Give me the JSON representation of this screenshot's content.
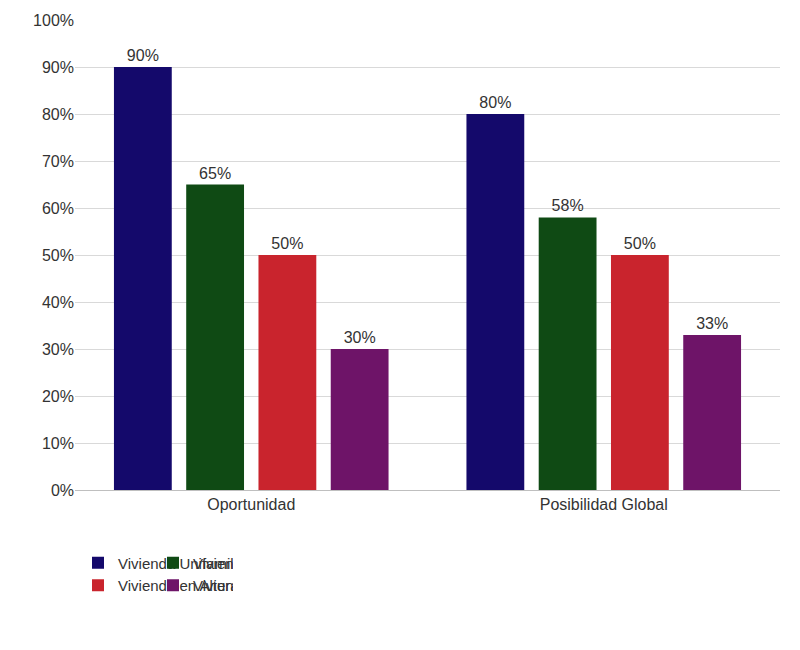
{
  "chart_data": {
    "type": "bar",
    "categories": [
      "Oportunidad",
      "Posibilidad Global"
    ],
    "series": [
      {
        "name": "Vivienda Unifamiliar - SIN CRA",
        "color": "#14096b",
        "values": [
          90,
          80
        ],
        "value_labels": [
          "90%",
          "80%"
        ]
      },
      {
        "name": "Vivienda Unifamiliar - CON CRA",
        "color": "#0f4a14",
        "values": [
          65,
          58
        ],
        "value_labels": [
          "65%",
          "58%"
        ]
      },
      {
        "name": "Vivienda en Altura - SIN CRA",
        "color": "#c9242d",
        "values": [
          50,
          50
        ],
        "value_labels": [
          "50%",
          "50%"
        ]
      },
      {
        "name": "Vivienda en Altura - CON CRA",
        "color": "#6e1468",
        "values": [
          30,
          33
        ],
        "value_labels": [
          "30%",
          "33%"
        ]
      }
    ],
    "ylim": [
      0,
      100
    ],
    "yticks": [
      {
        "value": 0,
        "label": "0%"
      },
      {
        "value": 10,
        "label": "10%"
      },
      {
        "value": 20,
        "label": "20%"
      },
      {
        "value": 30,
        "label": "30%"
      },
      {
        "value": 40,
        "label": "40%"
      },
      {
        "value": 50,
        "label": "50%"
      },
      {
        "value": 60,
        "label": "60%"
      },
      {
        "value": 70,
        "label": "70%"
      },
      {
        "value": 80,
        "label": "80%"
      },
      {
        "value": 90,
        "label": "90%"
      },
      {
        "value": 100,
        "label": "100%"
      }
    ],
    "grid": true,
    "legend": "bottom",
    "data_labels": true
  }
}
